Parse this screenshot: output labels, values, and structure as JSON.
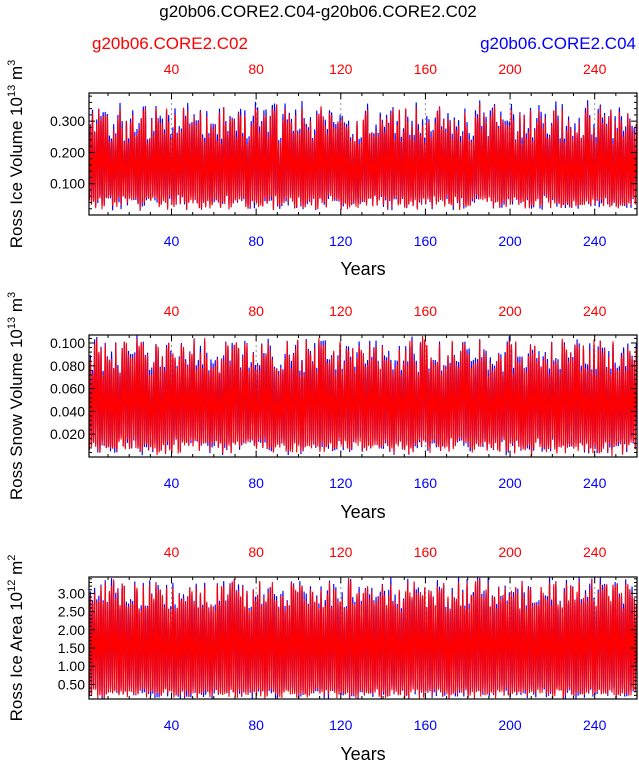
{
  "title": "g20b06.CORE2.C04-g20b06.CORE2.C02",
  "legend": {
    "left_label": "g20b06.CORE2.C02",
    "right_label": "g20b06.CORE2.C04"
  },
  "colors": {
    "c02": "#ff0000",
    "c04": "#0000ff",
    "frame": "#000000",
    "refline": "#999999"
  },
  "chart_data": [
    {
      "type": "line",
      "ylabel_main": "Ross Ice Volume 10",
      "ylabel_exp": "13",
      "ylabel_unit": " m",
      "ylabel_unit_exp": "3",
      "xlabel": "Years",
      "xlim": [
        1,
        260
      ],
      "ylim": [
        0.0,
        0.39
      ],
      "yticks": [
        0.1,
        0.2,
        0.3
      ],
      "ytick_labels": [
        "0.100",
        "0.200",
        "0.300"
      ],
      "xticks": [
        40,
        80,
        120,
        160,
        200,
        240
      ],
      "xtick_labels": [
        "40",
        "80",
        "120",
        "160",
        "200",
        "240"
      ],
      "series": [
        {
          "name": "g20b06.CORE2.C04",
          "color": "#0000ff",
          "seasonal_min_range": [
            0.02,
            0.06
          ],
          "seasonal_max_range": [
            0.24,
            0.36
          ]
        },
        {
          "name": "g20b06.CORE2.C02",
          "color": "#ff0000",
          "seasonal_min_range": [
            0.02,
            0.06
          ],
          "seasonal_max_range": [
            0.23,
            0.35
          ]
        }
      ]
    },
    {
      "type": "line",
      "ylabel_main": "Ross Snow Volume 10",
      "ylabel_exp": "13",
      "ylabel_unit": " m",
      "ylabel_unit_exp": "3",
      "xlabel": "Years",
      "xlim": [
        1,
        260
      ],
      "ylim": [
        0.0,
        0.107
      ],
      "yticks": [
        0.02,
        0.04,
        0.06,
        0.08,
        0.1
      ],
      "ytick_labels": [
        "0.020",
        "0.040",
        "0.060",
        "0.080",
        "0.100"
      ],
      "xticks": [
        40,
        80,
        120,
        160,
        200,
        240
      ],
      "xtick_labels": [
        "40",
        "80",
        "120",
        "160",
        "200",
        "240"
      ],
      "series": [
        {
          "name": "g20b06.CORE2.C04",
          "color": "#0000ff",
          "seasonal_min_range": [
            0.003,
            0.015
          ],
          "seasonal_max_range": [
            0.075,
            0.105
          ]
        },
        {
          "name": "g20b06.CORE2.C02",
          "color": "#ff0000",
          "seasonal_min_range": [
            0.003,
            0.015
          ],
          "seasonal_max_range": [
            0.072,
            0.104
          ]
        }
      ]
    },
    {
      "type": "line",
      "ylabel_main": "Ross Ice Area 10",
      "ylabel_exp": "12",
      "ylabel_unit": " m",
      "ylabel_unit_exp": "2",
      "xlabel": "Years",
      "xlim": [
        1,
        260
      ],
      "ylim": [
        0.1,
        3.45
      ],
      "yticks": [
        0.5,
        1.0,
        1.5,
        2.0,
        2.5,
        3.0
      ],
      "ytick_labels": [
        "0.50",
        "1.00",
        "1.50",
        "2.00",
        "2.50",
        "3.00"
      ],
      "xticks": [
        40,
        80,
        120,
        160,
        200,
        240
      ],
      "xtick_labels": [
        "40",
        "80",
        "120",
        "160",
        "200",
        "240"
      ],
      "series": [
        {
          "name": "g20b06.CORE2.C04",
          "color": "#0000ff",
          "seasonal_min_range": [
            0.15,
            0.35
          ],
          "seasonal_max_range": [
            2.6,
            3.4
          ]
        },
        {
          "name": "g20b06.CORE2.C02",
          "color": "#ff0000",
          "seasonal_min_range": [
            0.15,
            0.35
          ],
          "seasonal_max_range": [
            2.55,
            3.35
          ]
        }
      ]
    }
  ]
}
